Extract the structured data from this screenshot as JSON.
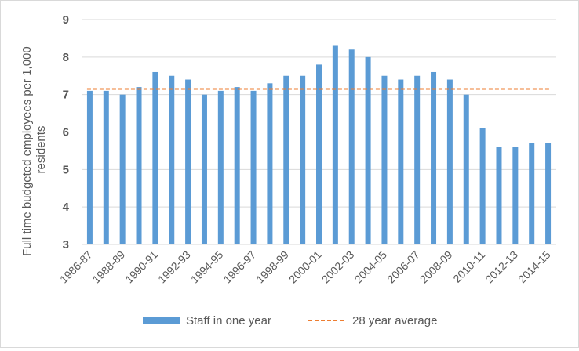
{
  "chart_data": {
    "type": "bar",
    "ylabel": "Full time budgeted employees per 1,000 residents",
    "ylabel_lines": [
      "Full time budgeted employees per 1,000",
      "residents"
    ],
    "ylim": [
      3,
      9
    ],
    "y_ticks": [
      3,
      4,
      5,
      6,
      7,
      8,
      9
    ],
    "grid": true,
    "legend_position": "bottom",
    "categories": [
      "1986-87",
      "1987-88",
      "1988-89",
      "1989-90",
      "1990-91",
      "1991-92",
      "1992-93",
      "1993-94",
      "1994-95",
      "1995-96",
      "1996-97",
      "1997-98",
      "1998-99",
      "1999-00",
      "2000-01",
      "2001-02",
      "2002-03",
      "2003-04",
      "2004-05",
      "2005-06",
      "2006-07",
      "2007-08",
      "2008-09",
      "2009-10",
      "2010-11",
      "2011-12",
      "2012-13",
      "2013-14",
      "2014-15"
    ],
    "tick_labels_shown": [
      "1986-87",
      "1988-89",
      "1990-91",
      "1992-93",
      "1994-95",
      "1996-97",
      "1998-99",
      "2000-01",
      "2002-03",
      "2004-05",
      "2006-07",
      "2008-09",
      "2010-11",
      "2012-13",
      "2014-15"
    ],
    "series": [
      {
        "name": "Staff in one year",
        "type": "bar",
        "color": "#5b9bd5",
        "values": [
          7.1,
          7.1,
          7.0,
          7.2,
          7.6,
          7.5,
          7.4,
          7.0,
          7.1,
          7.2,
          7.1,
          7.3,
          7.5,
          7.5,
          7.8,
          8.3,
          8.2,
          8.0,
          7.5,
          7.4,
          7.5,
          7.6,
          7.4,
          7.0,
          6.1,
          5.6,
          5.6,
          5.7,
          5.7
        ]
      },
      {
        "name": "28 year average",
        "type": "line",
        "style": "dashed",
        "color": "#ed7d31",
        "value": 7.15
      }
    ]
  }
}
